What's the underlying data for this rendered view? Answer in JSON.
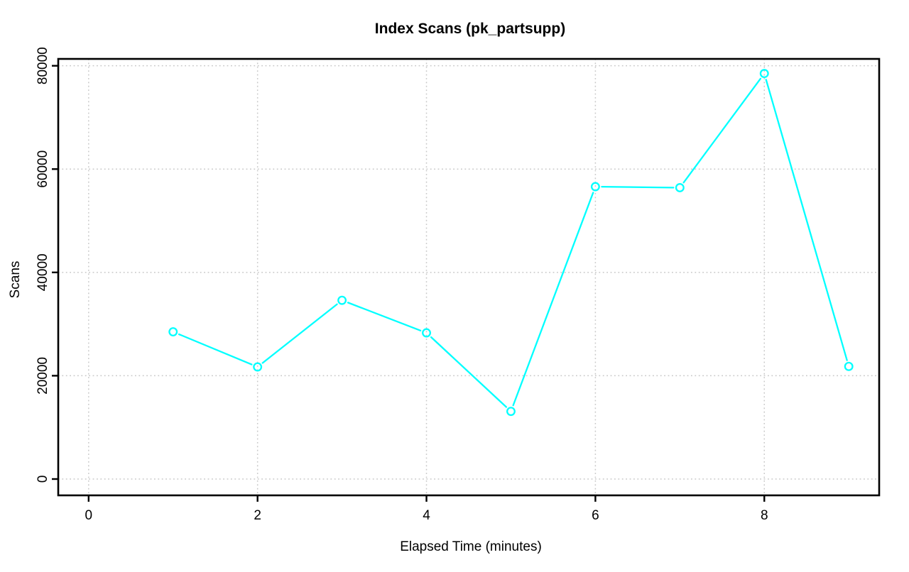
{
  "page": {
    "background": "#ffffff"
  },
  "chart_data": {
    "type": "line",
    "title": "Index Scans (pk_partsupp)",
    "xlabel": "Elapsed Time (minutes)",
    "ylabel": "Scans",
    "x": [
      1,
      2,
      3,
      4,
      5,
      6,
      7,
      8,
      9
    ],
    "series": [
      {
        "name": "pk_partsupp",
        "values": [
          28500,
          21700,
          34600,
          28300,
          13100,
          56600,
          56400,
          78500,
          21800
        ],
        "color": "#00ffff",
        "marker": "open-circle",
        "style": "line-with-marker-gaps"
      }
    ],
    "x_ticks": [
      0,
      2,
      4,
      6,
      8
    ],
    "y_ticks": [
      0,
      20000,
      40000,
      60000,
      80000
    ],
    "xlim": [
      0,
      9
    ],
    "ylim": [
      0,
      80000
    ],
    "x_range": [
      -0.36,
      9.36
    ],
    "y_range": [
      -3160,
      81330
    ],
    "grid": "dotted",
    "grid_color": "#c8c8c8",
    "axis_color": "#000000",
    "background": "#ffffff",
    "legend_position": "none"
  }
}
